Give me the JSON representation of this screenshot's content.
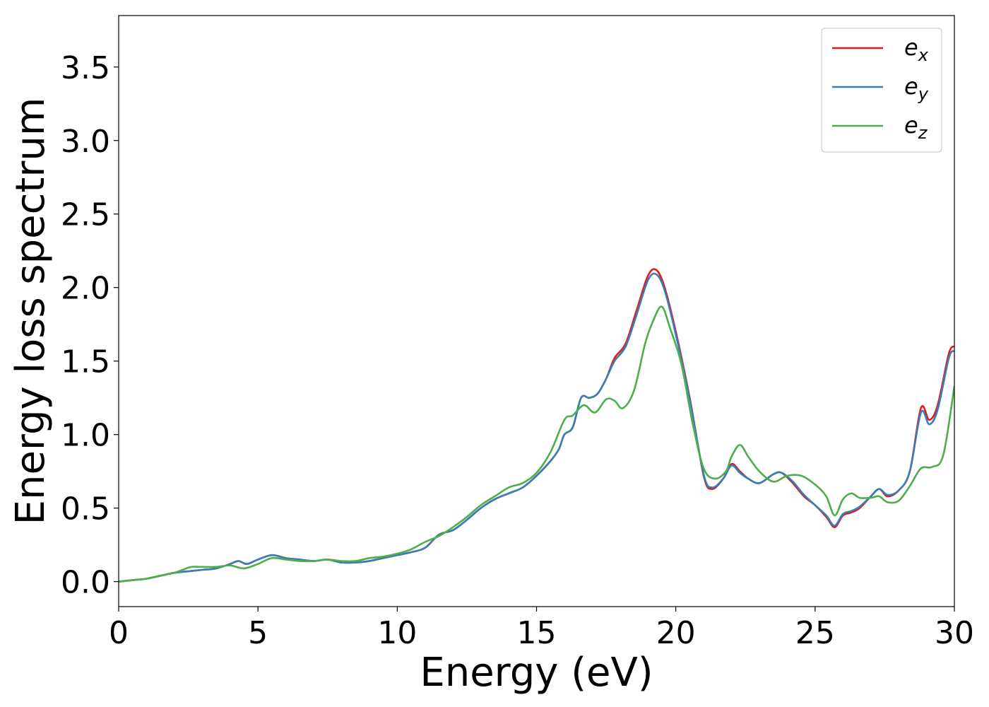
{
  "chart_data": {
    "type": "line",
    "title": "",
    "xlabel": "Energy (eV)",
    "ylabel": "Energy loss spectrum",
    "xlim": [
      0,
      30
    ],
    "ylim": [
      -0.17,
      3.85
    ],
    "xticks": [
      0,
      5,
      10,
      15,
      20,
      25,
      30
    ],
    "xtick_labels": [
      "0",
      "5",
      "10",
      "15",
      "20",
      "25",
      "30"
    ],
    "yticks": [
      0.0,
      0.5,
      1.0,
      1.5,
      2.0,
      2.5,
      3.0,
      3.5
    ],
    "ytick_labels": [
      "0.0",
      "0.5",
      "1.0",
      "1.5",
      "2.0",
      "2.5",
      "3.0",
      "3.5"
    ],
    "grid": false,
    "legend_position": "top-right",
    "series": [
      {
        "name": "e",
        "subscript": "x",
        "color": "#e41a1c",
        "x": [
          0,
          0.5,
          1.0,
          1.5,
          2.0,
          2.5,
          3.0,
          3.5,
          4.0,
          4.3,
          4.6,
          5.0,
          5.5,
          6.0,
          6.5,
          7.0,
          7.5,
          8.0,
          8.5,
          9.0,
          9.5,
          10.0,
          10.5,
          11.0,
          11.5,
          12.0,
          12.5,
          13.0,
          13.5,
          14.0,
          14.5,
          15.0,
          15.5,
          15.8,
          16.0,
          16.3,
          16.6,
          16.9,
          17.2,
          17.5,
          17.8,
          18.2,
          18.6,
          19.0,
          19.3,
          19.6,
          20.0,
          20.5,
          21.0,
          21.3,
          21.7,
          22.0,
          22.3,
          22.6,
          23.0,
          23.5,
          23.8,
          24.2,
          24.6,
          25.0,
          25.4,
          25.7,
          26.0,
          26.3,
          26.6,
          27.0,
          27.3,
          27.6,
          28.0,
          28.4,
          28.8,
          29.1,
          29.4,
          29.8,
          30.0
        ],
        "y": [
          0.0,
          0.01,
          0.02,
          0.04,
          0.06,
          0.07,
          0.08,
          0.09,
          0.12,
          0.14,
          0.12,
          0.15,
          0.18,
          0.16,
          0.15,
          0.14,
          0.15,
          0.13,
          0.13,
          0.14,
          0.16,
          0.18,
          0.2,
          0.23,
          0.32,
          0.35,
          0.42,
          0.5,
          0.56,
          0.6,
          0.64,
          0.72,
          0.82,
          0.9,
          1.0,
          1.05,
          1.25,
          1.25,
          1.28,
          1.38,
          1.52,
          1.62,
          1.85,
          2.08,
          2.12,
          2.0,
          1.7,
          1.25,
          0.72,
          0.63,
          0.7,
          0.8,
          0.75,
          0.7,
          0.67,
          0.73,
          0.74,
          0.67,
          0.58,
          0.52,
          0.44,
          0.37,
          0.45,
          0.47,
          0.5,
          0.58,
          0.63,
          0.58,
          0.62,
          0.75,
          1.18,
          1.1,
          1.2,
          1.55,
          1.6
        ]
      },
      {
        "name": "e",
        "subscript": "y",
        "color": "#377eb8",
        "x": [
          0,
          0.5,
          1.0,
          1.5,
          2.0,
          2.5,
          3.0,
          3.5,
          4.0,
          4.3,
          4.6,
          5.0,
          5.5,
          6.0,
          6.5,
          7.0,
          7.5,
          8.0,
          8.5,
          9.0,
          9.5,
          10.0,
          10.5,
          11.0,
          11.5,
          12.0,
          12.5,
          13.0,
          13.5,
          14.0,
          14.5,
          15.0,
          15.5,
          15.8,
          16.0,
          16.3,
          16.6,
          16.9,
          17.2,
          17.5,
          17.8,
          18.2,
          18.6,
          19.0,
          19.3,
          19.6,
          20.0,
          20.5,
          21.0,
          21.3,
          21.7,
          22.0,
          22.3,
          22.6,
          23.0,
          23.5,
          23.8,
          24.2,
          24.6,
          25.0,
          25.4,
          25.7,
          26.0,
          26.3,
          26.6,
          27.0,
          27.3,
          27.6,
          28.0,
          28.4,
          28.8,
          29.1,
          29.4,
          29.8,
          30.0
        ],
        "y": [
          0.0,
          0.01,
          0.02,
          0.04,
          0.06,
          0.07,
          0.08,
          0.09,
          0.12,
          0.14,
          0.12,
          0.15,
          0.18,
          0.16,
          0.15,
          0.14,
          0.15,
          0.13,
          0.13,
          0.14,
          0.16,
          0.18,
          0.2,
          0.23,
          0.32,
          0.35,
          0.42,
          0.5,
          0.56,
          0.6,
          0.64,
          0.72,
          0.82,
          0.9,
          1.0,
          1.05,
          1.25,
          1.25,
          1.28,
          1.38,
          1.5,
          1.6,
          1.82,
          2.05,
          2.09,
          1.98,
          1.68,
          1.24,
          0.73,
          0.64,
          0.7,
          0.79,
          0.74,
          0.7,
          0.67,
          0.73,
          0.74,
          0.68,
          0.59,
          0.52,
          0.45,
          0.38,
          0.46,
          0.48,
          0.51,
          0.58,
          0.63,
          0.59,
          0.62,
          0.75,
          1.15,
          1.07,
          1.17,
          1.52,
          1.57
        ]
      },
      {
        "name": "e",
        "subscript": "z",
        "color": "#4daf4a",
        "x": [
          0,
          0.5,
          1.0,
          1.5,
          2.0,
          2.3,
          2.6,
          3.0,
          3.5,
          4.0,
          4.5,
          5.0,
          5.5,
          6.0,
          6.5,
          7.0,
          7.5,
          8.0,
          8.5,
          9.0,
          9.5,
          10.0,
          10.5,
          11.0,
          11.5,
          12.0,
          12.5,
          13.0,
          13.5,
          14.0,
          14.5,
          15.0,
          15.5,
          16.0,
          16.3,
          16.7,
          17.1,
          17.5,
          17.8,
          18.1,
          18.5,
          18.9,
          19.2,
          19.5,
          19.8,
          20.2,
          20.6,
          21.0,
          21.4,
          21.8,
          22.0,
          22.3,
          22.6,
          23.0,
          23.5,
          24.0,
          24.5,
          25.0,
          25.4,
          25.7,
          26.0,
          26.3,
          26.6,
          27.0,
          27.3,
          27.6,
          28.0,
          28.4,
          28.8,
          29.2,
          29.6,
          30.0
        ],
        "y": [
          0.0,
          0.01,
          0.02,
          0.04,
          0.06,
          0.08,
          0.1,
          0.1,
          0.1,
          0.11,
          0.09,
          0.12,
          0.16,
          0.15,
          0.14,
          0.14,
          0.15,
          0.14,
          0.14,
          0.16,
          0.17,
          0.19,
          0.22,
          0.27,
          0.31,
          0.37,
          0.44,
          0.52,
          0.58,
          0.64,
          0.67,
          0.74,
          0.88,
          1.1,
          1.13,
          1.2,
          1.15,
          1.24,
          1.23,
          1.18,
          1.3,
          1.62,
          1.78,
          1.87,
          1.72,
          1.48,
          1.08,
          0.77,
          0.7,
          0.75,
          0.85,
          0.93,
          0.85,
          0.75,
          0.68,
          0.72,
          0.72,
          0.66,
          0.58,
          0.45,
          0.56,
          0.6,
          0.57,
          0.57,
          0.58,
          0.54,
          0.55,
          0.65,
          0.77,
          0.78,
          0.86,
          1.33
        ]
      }
    ]
  }
}
